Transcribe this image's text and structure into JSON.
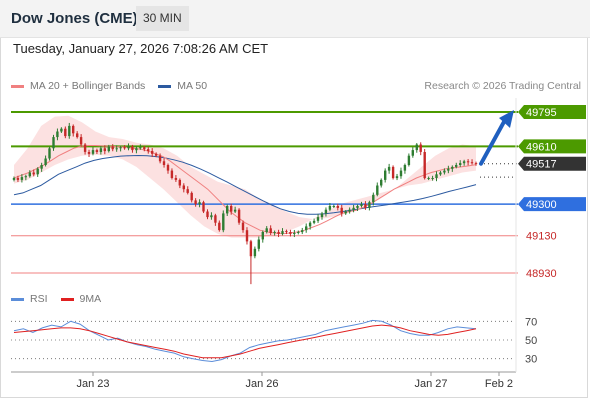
{
  "header": {
    "instrument": "Dow Jones (CME)",
    "timeframe": "30 MIN"
  },
  "datetime": "Tuesday, January 27, 2026 7:08:26 AM CET",
  "legend": {
    "items": [
      {
        "label": "MA 20 + Bollinger Bands",
        "color": "#f08080"
      },
      {
        "label": "MA 50",
        "color": "#2c5aa0"
      }
    ],
    "copyright": "Research © 2026 Trading Central"
  },
  "rsi_legend": {
    "items": [
      {
        "label": "RSI",
        "color": "#5b8dd9"
      },
      {
        "label": "9MA",
        "color": "#e02020"
      }
    ]
  },
  "colors": {
    "up_candle": "#2e7d32",
    "down_candle": "#c62828",
    "resistance": "#4c9a00",
    "support": "#2f6fdf",
    "minor_level": "#f08080",
    "current_price": "#333333",
    "forecast_arrow": "#1f5fbf",
    "bollinger_fill": "#fbdcdc"
  },
  "chart_data": [
    {
      "type": "candlestick",
      "title": "Dow Jones (CME) 30 MIN",
      "x_tick_labels": [
        "Jan 23",
        "Jan 26",
        "Jan 27",
        "Feb 2"
      ],
      "ylim": [
        48860,
        49870
      ],
      "levels": [
        {
          "value": 49795,
          "label": "49795",
          "kind": "resistance"
        },
        {
          "value": 49610,
          "label": "49610",
          "kind": "resistance"
        },
        {
          "value": 49517,
          "label": "49517",
          "kind": "current"
        },
        {
          "value": 49300,
          "label": "49300",
          "kind": "support"
        },
        {
          "value": 49130,
          "label": "49130",
          "kind": "minor"
        },
        {
          "value": 48930,
          "label": "48930",
          "kind": "minor"
        }
      ],
      "forecast": {
        "from": 49517,
        "to": 49795
      },
      "closes": [
        49440,
        49430,
        49445,
        49450,
        49470,
        49460,
        49490,
        49510,
        49545,
        49600,
        49660,
        49690,
        49705,
        49665,
        49720,
        49680,
        49660,
        49620,
        49580,
        49570,
        49590,
        49580,
        49600,
        49585,
        49610,
        49595,
        49600,
        49605,
        49600,
        49610,
        49590,
        49600,
        49605,
        49595,
        49585,
        49570,
        49560,
        49530,
        49510,
        49480,
        49440,
        49430,
        49400,
        49380,
        49360,
        49320,
        49300,
        49310,
        49260,
        49230,
        49240,
        49200,
        49160,
        49250,
        49290,
        49260,
        49270,
        49200,
        49160,
        49100,
        49020,
        49060,
        49110,
        49150,
        49170,
        49145,
        49150,
        49140,
        49155,
        49150,
        49140,
        49145,
        49150,
        49160,
        49180,
        49200,
        49210,
        49230,
        49250,
        49270,
        49290,
        49290,
        49280,
        49250,
        49260,
        49270,
        49280,
        49290,
        49300,
        49280,
        49310,
        49350,
        49400,
        49430,
        49480,
        49500,
        49440,
        49450,
        49480,
        49510,
        49560,
        49590,
        49620,
        49580,
        49440,
        49440,
        49440,
        49460,
        49470,
        49480,
        49490,
        49500,
        49510,
        49520,
        49530,
        49525,
        49520,
        49517
      ],
      "ma20": [
        49440,
        49455,
        49470,
        49490,
        49510,
        49535,
        49560,
        49580,
        49600,
        49610,
        49615,
        49615,
        49612,
        49610,
        49608,
        49605,
        49600,
        49595,
        49585,
        49570,
        49555,
        49530,
        49500,
        49470,
        49440,
        49410,
        49380,
        49340,
        49300,
        49260,
        49230,
        49200,
        49180,
        49160,
        49150,
        49145,
        49140,
        49145,
        49150,
        49160,
        49175,
        49190,
        49210,
        49230,
        49250,
        49260,
        49268,
        49285,
        49305,
        49330,
        49355,
        49380,
        49400,
        49420,
        49440,
        49455,
        49470,
        49480,
        49490,
        49495,
        49500,
        49505,
        49512
      ],
      "ma50": [
        49350,
        49360,
        49380,
        49400,
        49430,
        49460,
        49480,
        49500,
        49520,
        49535,
        49545,
        49552,
        49558,
        49560,
        49561,
        49560,
        49555,
        49548,
        49538,
        49525,
        49508,
        49488,
        49466,
        49442,
        49418,
        49393,
        49368,
        49343,
        49318,
        49295,
        49275,
        49260,
        49250,
        49245,
        49245,
        49248,
        49253,
        49260,
        49268,
        49275,
        49283,
        49290,
        49297,
        49305,
        49312,
        49320,
        49330,
        49342,
        49355,
        49368,
        49380,
        49392,
        49405
      ],
      "bollinger_upper_approx": [
        49510,
        49600,
        49720,
        49770,
        49775,
        49740,
        49690,
        49660,
        49650,
        49630,
        49620,
        49600,
        49560,
        49500,
        49460,
        49420,
        49400,
        49380,
        49330,
        49300,
        49260,
        49230,
        49220,
        49225,
        49240,
        49260,
        49290,
        49330,
        49380,
        49440,
        49500,
        49560,
        49600,
        49620,
        49610
      ],
      "bollinger_lower_approx": [
        49410,
        49430,
        49470,
        49510,
        49540,
        49560,
        49565,
        49560,
        49540,
        49500,
        49440,
        49380,
        49310,
        49240,
        49180,
        49140,
        49120,
        49120,
        49120,
        49130,
        49150,
        49180,
        49220,
        49260,
        49300,
        49320,
        49340,
        49360,
        49380,
        49400,
        49410,
        49430,
        49450,
        49470,
        49480
      ]
    },
    {
      "type": "line",
      "title": "RSI",
      "tick_labels": [
        "70",
        "50",
        "30"
      ],
      "ylim": [
        20,
        80
      ],
      "series": [
        {
          "name": "RSI",
          "values": [
            60,
            62,
            58,
            63,
            66,
            64,
            70,
            67,
            60,
            55,
            50,
            52,
            48,
            45,
            43,
            40,
            38,
            36,
            32,
            30,
            28,
            27,
            29,
            33,
            36,
            42,
            45,
            47,
            49,
            50,
            52,
            54,
            56,
            60,
            62,
            64,
            66,
            68,
            71,
            70,
            66,
            60,
            57,
            55,
            55,
            58,
            62,
            64,
            63,
            62
          ]
        },
        {
          "name": "9MA",
          "values": [
            58,
            59,
            60,
            61,
            62,
            63,
            63,
            62,
            60,
            57,
            54,
            51,
            48,
            46,
            44,
            42,
            40,
            38,
            35,
            33,
            31,
            31,
            31,
            33,
            35,
            38,
            41,
            43,
            45,
            47,
            49,
            51,
            53,
            55,
            57,
            59,
            61,
            63,
            65,
            66,
            65,
            63,
            60,
            58,
            56,
            55,
            56,
            58,
            60,
            62
          ]
        }
      ]
    }
  ]
}
